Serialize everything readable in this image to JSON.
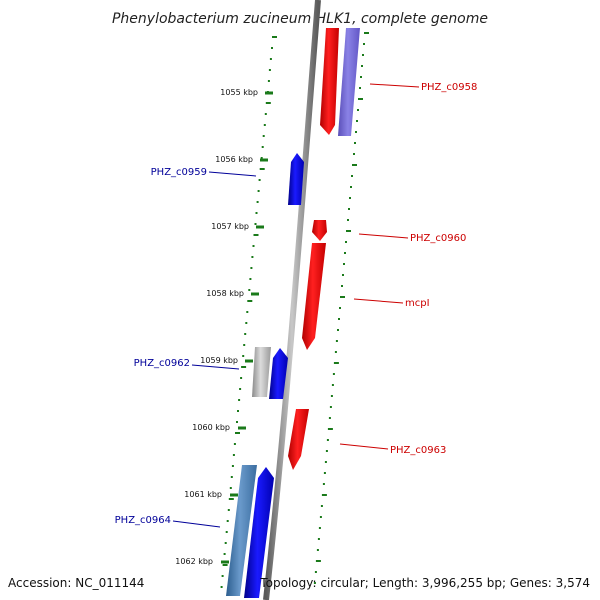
{
  "title": "Phenylobacterium zucineum HLK1, complete genome",
  "accession": "Accession: NC_011144",
  "topology": "Topology: circular; Length: 3,996,255 bp; Genes: 3,574",
  "colors": {
    "backbone": "#888888",
    "tick_green": "#1a7a1a",
    "forward_gene": "#ff0000",
    "reverse_gene": "#0000ff",
    "reverse_gene_pale": "#7777dd",
    "reverse_gene_steel": "#4f81b6",
    "grey_gene": "#aaaaaa",
    "label_forward": "#cc0000",
    "label_reverse": "#000099"
  },
  "scale_labels": [
    "1055 kbp",
    "1056 kbp",
    "1057 kbp",
    "1058 kbp",
    "1059 kbp",
    "1060 kbp",
    "1061 kbp",
    "1062 kbp"
  ],
  "genes": [
    {
      "name": "PHZ_c0958",
      "strand": "forward",
      "color": "forward_gene",
      "labeled": true
    },
    {
      "name": "",
      "strand": "forward",
      "color": "reverse_gene_pale",
      "labeled": false
    },
    {
      "name": "PHZ_c0959",
      "strand": "reverse",
      "color": "reverse_gene",
      "labeled": true
    },
    {
      "name": "PHZ_c0960",
      "strand": "forward",
      "color": "forward_gene",
      "labeled": true
    },
    {
      "name": "mcpI",
      "strand": "forward",
      "color": "forward_gene",
      "labeled": true
    },
    {
      "name": "PHZ_c0962",
      "strand": "reverse",
      "color": "reverse_gene",
      "labeled": true
    },
    {
      "name": "",
      "strand": "reverse",
      "color": "grey_gene",
      "labeled": false
    },
    {
      "name": "PHZ_c0963",
      "strand": "forward",
      "color": "forward_gene",
      "labeled": true
    },
    {
      "name": "PHZ_c0964",
      "strand": "reverse",
      "color": "reverse_gene",
      "labeled": true
    },
    {
      "name": "",
      "strand": "reverse",
      "color": "reverse_gene_steel",
      "labeled": false
    }
  ]
}
